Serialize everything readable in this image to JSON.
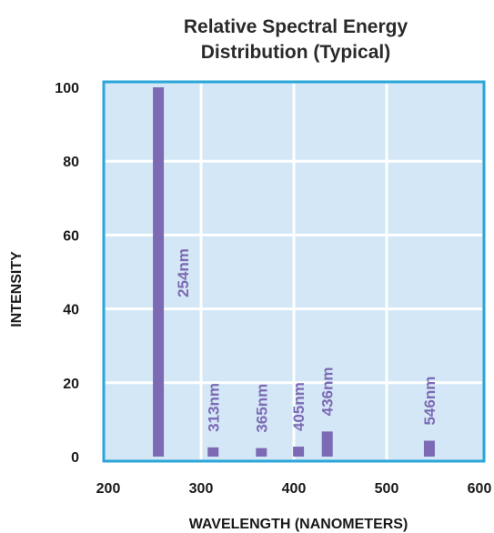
{
  "chart_data": {
    "type": "bar",
    "title_lines": [
      "Relative Spectral Energy",
      "Distribution (Typical)"
    ],
    "xlabel": "WAVELENGTH (NANOMETERS)",
    "ylabel": "INTENSITY",
    "xlim": [
      200,
      600
    ],
    "ylim": [
      0,
      100
    ],
    "xticks": [
      200,
      300,
      400,
      500,
      600
    ],
    "yticks": [
      0,
      20,
      40,
      60,
      80,
      100
    ],
    "grid": true,
    "colors": {
      "bar": "#7c6ab4",
      "plot_bg": "#d3e7f6",
      "border": "#2aa6d9",
      "grid": "#ffffff",
      "label": "#7c6ab4"
    },
    "series": [
      {
        "x": [
          254,
          313,
          365,
          405,
          436,
          546
        ],
        "values": [
          100,
          2.5,
          2.3,
          2.7,
          6.8,
          4.3
        ],
        "labels": [
          "254nm",
          "313nm",
          "365nm",
          "405nm",
          "436nm",
          "546nm"
        ]
      }
    ]
  }
}
